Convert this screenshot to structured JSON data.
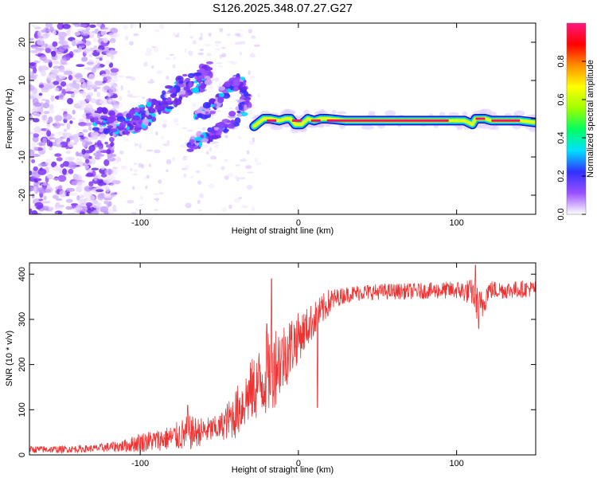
{
  "title": "S126.2025.348.07.27.G27",
  "chart_data": [
    {
      "type": "heatmap",
      "name": "spectrogram",
      "xlabel": "Height of straight line (km)",
      "ylabel": "Frequency (Hz)",
      "xlim": [
        -170,
        150
      ],
      "ylim": [
        -25,
        25
      ],
      "x_ticks": [
        -100,
        0,
        100
      ],
      "x_tick_labels": [
        "-100",
        "0",
        "100"
      ],
      "y_ticks": [
        -20,
        -10,
        0,
        10,
        20
      ],
      "y_tick_labels": [
        "-20",
        "-10",
        "0",
        "10",
        "20"
      ],
      "colorbar": {
        "label": "Normalized spectral amplitude",
        "range": [
          0,
          1
        ],
        "ticks": [
          0.0,
          0.2,
          0.4,
          0.6,
          0.8
        ],
        "tick_labels": [
          "0.0",
          "0.2",
          "0.4",
          "0.6",
          "0.8"
        ],
        "colormap": [
          "#ffffff",
          "#9a50ff",
          "#3030ff",
          "#00e0ff",
          "#00ff60",
          "#a0ff00",
          "#ffff00",
          "#ff9000",
          "#ff0000",
          "#ff1880"
        ]
      },
      "features": {
        "carrier_line": {
          "x": [
            -28,
            -22,
            -18,
            -12,
            -8,
            -5,
            -2,
            2,
            6,
            10,
            14,
            18,
            30,
            60,
            90,
            105,
            110,
            112,
            118,
            122,
            130,
            140,
            150
          ],
          "y": [
            -2,
            0,
            0,
            -0.5,
            0,
            0,
            -1.5,
            -1.5,
            0,
            -0.5,
            0,
            0,
            -0.5,
            -0.5,
            -0.5,
            -0.5,
            -1.5,
            0,
            0,
            -0.5,
            -0.5,
            -0.5,
            -1
          ]
        },
        "upper_branch": {
          "x": [
            -130,
            -120,
            -110,
            -100,
            -90,
            -80,
            -70,
            -62,
            -56
          ],
          "y": [
            0,
            -1,
            -2,
            0,
            3,
            6,
            9,
            10,
            12
          ]
        },
        "middle_branch": {
          "x": [
            -64,
            -58,
            -50,
            -44,
            -38,
            -34
          ],
          "y": [
            0,
            2,
            5,
            8,
            10,
            6
          ]
        },
        "lower_branch": {
          "x": [
            -68,
            -60,
            -50,
            -40,
            -34,
            -32
          ],
          "y": [
            -7,
            -5,
            -3,
            0,
            4,
            5
          ]
        }
      }
    },
    {
      "type": "line",
      "name": "snr",
      "xlabel": "Height of straight line (km)",
      "ylabel": "SNR (10 * v/v)",
      "xlim": [
        -170,
        150
      ],
      "ylim": [
        0,
        425
      ],
      "x_ticks": [
        -100,
        0,
        100
      ],
      "x_tick_labels": [
        "-100",
        "0",
        "100"
      ],
      "y_ticks": [
        0,
        100,
        200,
        300,
        400
      ],
      "y_tick_labels": [
        "0",
        "100",
        "200",
        "300",
        "400"
      ],
      "color": "#ee3333",
      "x": [
        -170,
        -150,
        -130,
        -110,
        -100,
        -90,
        -80,
        -70,
        -60,
        -50,
        -40,
        -30,
        -20,
        -15,
        -10,
        -5,
        0,
        5,
        10,
        15,
        20,
        25,
        30,
        40,
        60,
        80,
        100,
        110,
        115,
        120,
        130,
        150
      ],
      "y": [
        12,
        12,
        14,
        20,
        28,
        32,
        38,
        48,
        52,
        60,
        90,
        140,
        175,
        200,
        215,
        240,
        260,
        280,
        300,
        320,
        340,
        348,
        355,
        360,
        362,
        363,
        365,
        360,
        320,
        365,
        365,
        368
      ],
      "noise_amplitude": [
        8,
        8,
        8,
        14,
        22,
        24,
        28,
        40,
        30,
        28,
        55,
        70,
        90,
        95,
        80,
        70,
        55,
        45,
        40,
        35,
        30,
        20,
        18,
        18,
        18,
        18,
        20,
        30,
        45,
        22,
        20,
        18
      ],
      "spikes": [
        {
          "x": -17,
          "y": 390
        },
        {
          "x": -20,
          "y": 290
        },
        {
          "x": -70,
          "y": 110
        },
        {
          "x": 12,
          "y": 105
        },
        {
          "x": 112,
          "y": 420
        },
        {
          "x": 114,
          "y": 280
        }
      ]
    }
  ]
}
